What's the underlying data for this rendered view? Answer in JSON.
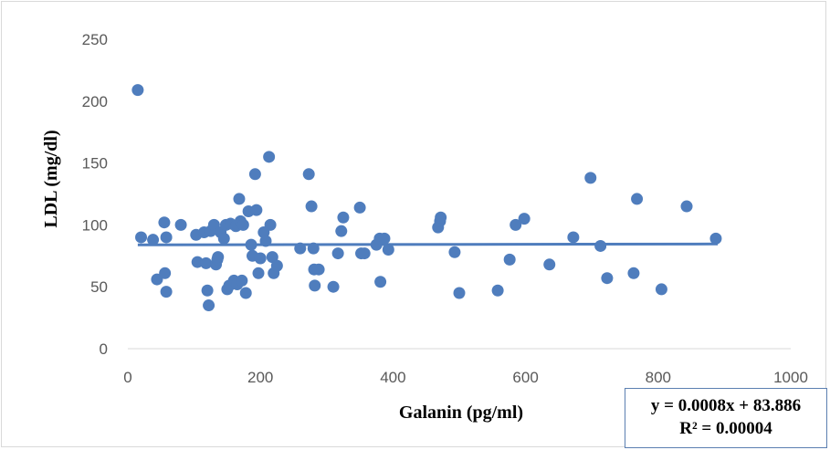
{
  "chart_data": {
    "type": "scatter",
    "xlabel": "Galanin (pg/ml)",
    "ylabel": "LDL (mg/dl)",
    "xlim": [
      0,
      1000
    ],
    "ylim": [
      0,
      250
    ],
    "xticks": [
      "0",
      "200",
      "400",
      "600",
      "800",
      "1000"
    ],
    "yticks": [
      "0",
      "50",
      "100",
      "150",
      "200",
      "250"
    ],
    "grid": false,
    "marker_color": "#4f7dbd",
    "trendline": {
      "slope": 0.0008,
      "intercept": 83.886,
      "x_range": [
        15,
        890
      ],
      "color": "#4f7dbd"
    },
    "equation_text": "y = 0.0008x + 83.886",
    "r2_text": "R² = 0.00004",
    "points": [
      [
        15,
        209
      ],
      [
        20,
        90
      ],
      [
        38,
        88
      ],
      [
        44,
        56
      ],
      [
        55,
        102
      ],
      [
        56,
        61
      ],
      [
        58,
        90
      ],
      [
        58,
        46
      ],
      [
        80,
        100
      ],
      [
        103,
        92
      ],
      [
        105,
        70
      ],
      [
        115,
        94
      ],
      [
        118,
        69
      ],
      [
        120,
        47
      ],
      [
        122,
        35
      ],
      [
        125,
        95
      ],
      [
        130,
        100
      ],
      [
        133,
        68
      ],
      [
        135,
        72
      ],
      [
        136,
        74
      ],
      [
        140,
        94
      ],
      [
        145,
        89
      ],
      [
        148,
        100
      ],
      [
        150,
        48
      ],
      [
        153,
        51
      ],
      [
        155,
        101
      ],
      [
        160,
        55
      ],
      [
        163,
        99
      ],
      [
        165,
        52
      ],
      [
        168,
        121
      ],
      [
        170,
        103
      ],
      [
        172,
        55
      ],
      [
        174,
        100
      ],
      [
        178,
        45
      ],
      [
        182,
        111
      ],
      [
        186,
        84
      ],
      [
        188,
        75
      ],
      [
        192,
        141
      ],
      [
        194,
        112
      ],
      [
        197,
        61
      ],
      [
        200,
        73
      ],
      [
        205,
        94
      ],
      [
        208,
        87
      ],
      [
        213,
        155
      ],
      [
        215,
        100
      ],
      [
        218,
        74
      ],
      [
        220,
        61
      ],
      [
        225,
        67
      ],
      [
        260,
        81
      ],
      [
        273,
        141
      ],
      [
        277,
        115
      ],
      [
        280,
        81
      ],
      [
        281,
        64
      ],
      [
        282,
        51
      ],
      [
        288,
        64
      ],
      [
        310,
        50
      ],
      [
        317,
        77
      ],
      [
        322,
        95
      ],
      [
        325,
        106
      ],
      [
        350,
        114
      ],
      [
        352,
        77
      ],
      [
        357,
        77
      ],
      [
        375,
        84
      ],
      [
        380,
        89
      ],
      [
        381,
        54
      ],
      [
        387,
        89
      ],
      [
        393,
        80
      ],
      [
        468,
        98
      ],
      [
        471,
        103
      ],
      [
        472,
        106
      ],
      [
        493,
        78
      ],
      [
        500,
        45
      ],
      [
        558,
        47
      ],
      [
        576,
        72
      ],
      [
        585,
        100
      ],
      [
        598,
        105
      ],
      [
        636,
        68
      ],
      [
        672,
        90
      ],
      [
        698,
        138
      ],
      [
        713,
        83
      ],
      [
        723,
        57
      ],
      [
        763,
        61
      ],
      [
        768,
        121
      ],
      [
        805,
        48
      ],
      [
        843,
        115
      ],
      [
        887,
        89
      ]
    ]
  }
}
